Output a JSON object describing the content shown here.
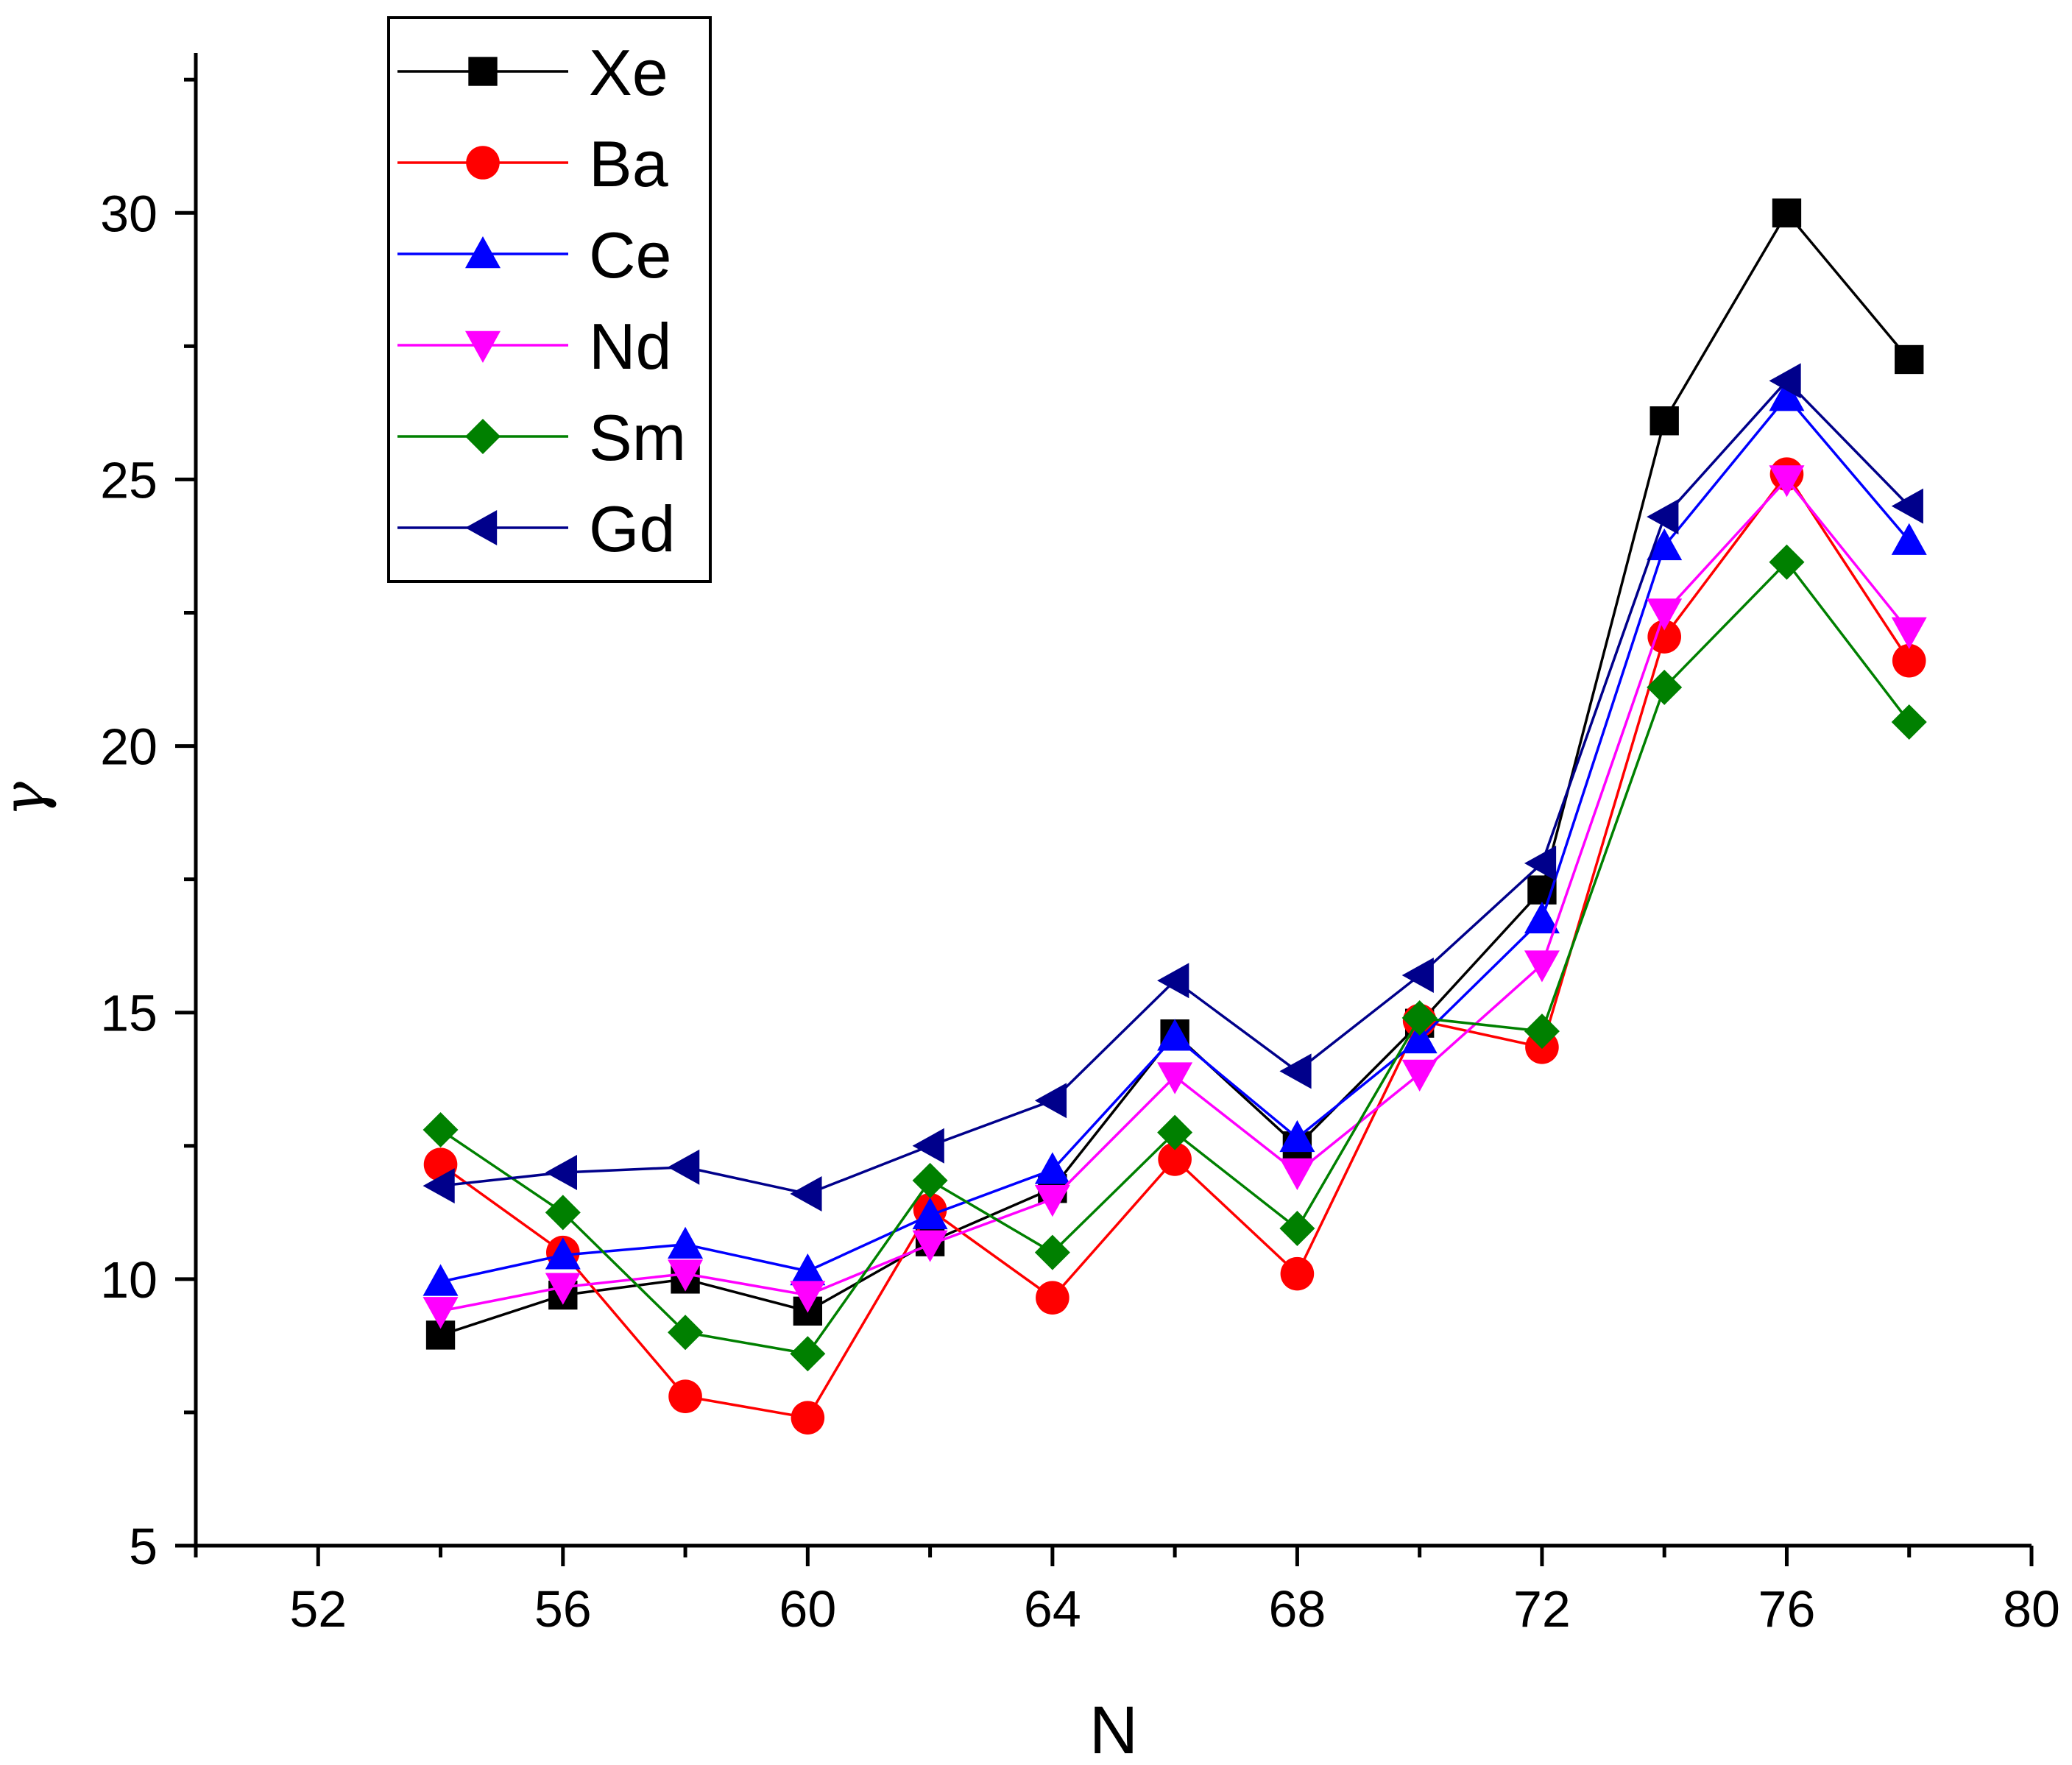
{
  "chart_data": {
    "type": "line",
    "title": "",
    "xlabel": "N",
    "ylabel": "γ",
    "xlim": [
      50,
      80
    ],
    "ylim": [
      5,
      33
    ],
    "x_ticks": [
      52,
      56,
      60,
      64,
      68,
      72,
      76,
      80
    ],
    "y_ticks": [
      5,
      10,
      15,
      20,
      25,
      30
    ],
    "grid": false,
    "legend_position": "top-left",
    "x": [
      54,
      56,
      58,
      60,
      62,
      64,
      66,
      68,
      70,
      72,
      74,
      76,
      78
    ],
    "series": [
      {
        "name": "Xe",
        "color": "#000000",
        "marker": "square",
        "values": [
          8.95,
          9.7,
          10.0,
          9.4,
          10.7,
          11.7,
          14.6,
          12.5,
          14.8,
          17.3,
          26.1,
          30.0,
          27.25
        ]
      },
      {
        "name": "Ba",
        "color": "#ff0000",
        "marker": "circle",
        "values": [
          12.15,
          10.5,
          7.8,
          7.4,
          11.3,
          9.65,
          12.25,
          10.1,
          14.85,
          14.35,
          22.05,
          25.1,
          21.6
        ]
      },
      {
        "name": "Ce",
        "color": "#0000ff",
        "marker": "triangle-up",
        "values": [
          9.95,
          10.45,
          10.65,
          10.15,
          11.2,
          12.05,
          14.55,
          12.65,
          14.5,
          16.75,
          23.75,
          26.55,
          23.85
        ]
      },
      {
        "name": "Nd",
        "color": "#ff00ff",
        "marker": "triangle-down",
        "values": [
          9.4,
          9.85,
          10.1,
          9.7,
          10.65,
          11.5,
          13.8,
          12.0,
          13.85,
          15.9,
          22.5,
          25.0,
          22.15
        ]
      },
      {
        "name": "Sm",
        "color": "#008000",
        "marker": "diamond",
        "values": [
          12.8,
          11.25,
          9.0,
          8.6,
          11.85,
          10.5,
          12.75,
          10.95,
          14.9,
          14.65,
          21.1,
          23.45,
          20.45
        ]
      },
      {
        "name": "Gd",
        "color": "#00008b",
        "marker": "triangle-left",
        "values": [
          11.75,
          12.0,
          12.1,
          11.6,
          12.5,
          13.35,
          15.6,
          13.9,
          15.7,
          17.8,
          24.3,
          26.85,
          24.5
        ]
      }
    ]
  }
}
